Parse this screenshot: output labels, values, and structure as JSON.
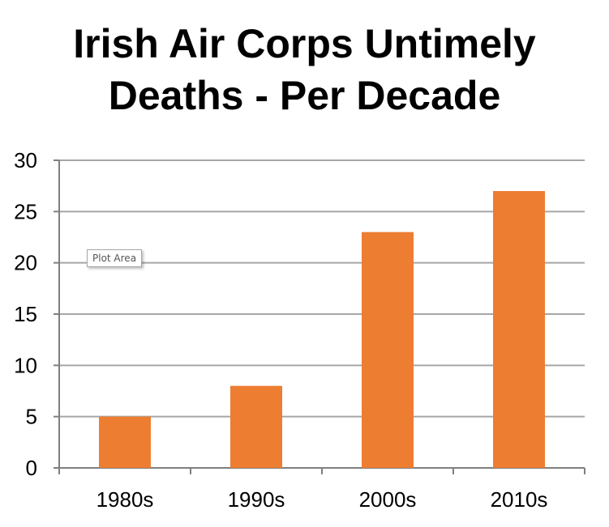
{
  "chart_data": {
    "type": "bar",
    "title_lines": [
      "Irish Air Corps Untimely",
      "Deaths - Per Decade"
    ],
    "categories": [
      "1980s",
      "1990s",
      "2000s",
      "2010s"
    ],
    "series": [
      {
        "values": [
          5,
          8,
          23,
          27
        ],
        "color": "#ed7d31"
      }
    ],
    "ylim": [
      0,
      30
    ],
    "yticks": [
      0,
      5,
      10,
      15,
      20,
      25,
      30
    ],
    "grid": true,
    "legend": "none"
  },
  "tooltip": {
    "label": "Plot Area"
  },
  "colors": {
    "bar": "#ed7d31",
    "grid": "#a6a6a6",
    "axis": "#7f7f7f",
    "text": "#000000"
  }
}
